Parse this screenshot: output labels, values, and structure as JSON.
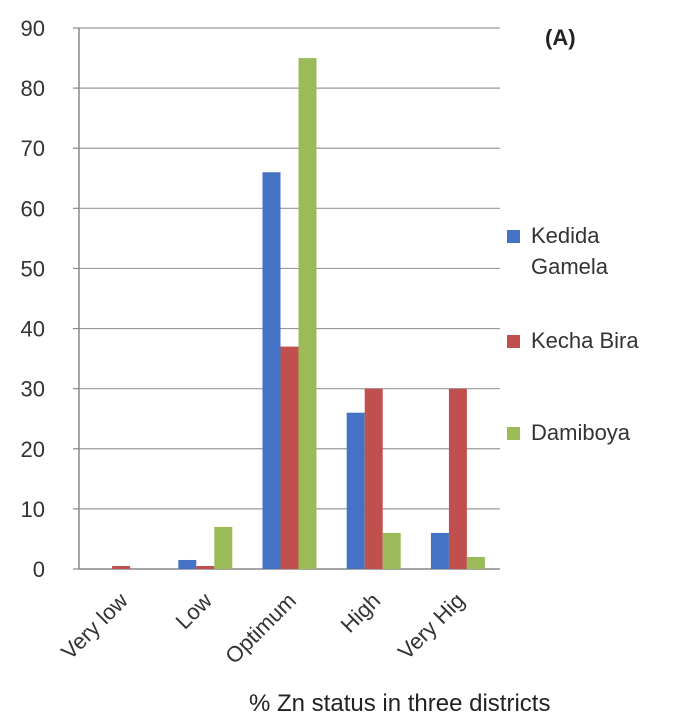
{
  "chart_data": {
    "type": "bar",
    "panel_label": "(A)",
    "xlabel": "% Zn status in three districts",
    "ylabel": "",
    "ylim": [
      0,
      90
    ],
    "yticks": [
      0,
      10,
      20,
      30,
      40,
      50,
      60,
      70,
      80,
      90
    ],
    "grid": "horizontal",
    "legend_position": "right",
    "categories": [
      "Very low",
      "Low",
      "Optimum",
      "High",
      "Very Hig"
    ],
    "series": [
      {
        "name": "Kedida Gamela",
        "name_lines": [
          "Kedida",
          "Gamela"
        ],
        "color": "#4472C4",
        "values": [
          0,
          1.5,
          66,
          26,
          6
        ]
      },
      {
        "name": "Kecha Bira",
        "name_lines": [
          "Kecha Bira"
        ],
        "color": "#C0504D",
        "values": [
          0.5,
          0.5,
          37,
          30,
          30
        ]
      },
      {
        "name": "Damiboya",
        "name_lines": [
          "Damiboya"
        ],
        "color": "#9BBB59",
        "values": [
          0,
          7,
          85,
          6,
          2
        ]
      }
    ]
  }
}
